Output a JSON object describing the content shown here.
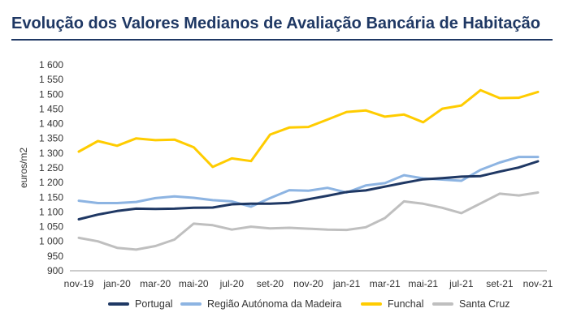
{
  "title": "Evolução dos Valores Medianos de Avaliação Bancária de Habitação",
  "chart_data": {
    "type": "line",
    "title": "Evolução dos Valores Medianos de Avaliação Bancária de Habitação",
    "xlabel": "",
    "ylabel": "euros/m2",
    "ylim": [
      900,
      1600
    ],
    "yticks": [
      900,
      950,
      1000,
      1050,
      1100,
      1150,
      1200,
      1250,
      1300,
      1350,
      1400,
      1450,
      1500,
      1550,
      1600
    ],
    "ytick_labels": [
      "900",
      "950",
      "1 000",
      "1 050",
      "1 100",
      "1 150",
      "1 200",
      "1 250",
      "1 300",
      "1 350",
      "1 400",
      "1 450",
      "1 500",
      "1 550",
      "1 600"
    ],
    "x": [
      "nov-19",
      "dez-19",
      "jan-20",
      "fev-20",
      "mar-20",
      "abr-20",
      "mai-20",
      "jun-20",
      "jul-20",
      "ago-20",
      "set-20",
      "out-20",
      "nov-20",
      "dez-20",
      "jan-21",
      "fev-21",
      "mar-21",
      "abr-21",
      "mai-21",
      "jun-21",
      "jul-21",
      "ago-21",
      "set-21",
      "out-21",
      "nov-21"
    ],
    "xtick_labels": [
      "nov-19",
      "jan-20",
      "mar-20",
      "mai-20",
      "jul-20",
      "set-20",
      "nov-20",
      "jan-21",
      "mar-21",
      "mai-21",
      "jul-21",
      "set-21",
      "nov-21"
    ],
    "grid": false,
    "legend_position": "bottom",
    "series": [
      {
        "name": "Portugal",
        "color": "#1f3864",
        "values": [
          1075,
          1091,
          1103,
          1111,
          1110,
          1111,
          1114,
          1115,
          1126,
          1128,
          1128,
          1131,
          1143,
          1155,
          1168,
          1173,
          1186,
          1199,
          1211,
          1215,
          1220,
          1222,
          1237,
          1251,
          1272
        ]
      },
      {
        "name": "Região Autónoma da Madeira",
        "color": "#8db4e2",
        "values": [
          1138,
          1130,
          1130,
          1134,
          1147,
          1153,
          1148,
          1140,
          1136,
          1118,
          1147,
          1174,
          1172,
          1182,
          1166,
          1190,
          1198,
          1225,
          1214,
          1210,
          1206,
          1243,
          1268,
          1287,
          1287
        ]
      },
      {
        "name": "Funchal",
        "color": "#ffcc00",
        "values": [
          1305,
          1341,
          1325,
          1350,
          1344,
          1346,
          1320,
          1253,
          1282,
          1273,
          1363,
          1387,
          1389,
          1414,
          1440,
          1445,
          1424,
          1431,
          1405,
          1451,
          1462,
          1514,
          1487,
          1488,
          1508
        ]
      },
      {
        "name": "Santa Cruz",
        "color": "#bfbfbf",
        "values": [
          1012,
          1000,
          978,
          972,
          984,
          1006,
          1060,
          1055,
          1040,
          1050,
          1044,
          1046,
          1043,
          1040,
          1039,
          1048,
          1079,
          1136,
          1128,
          1114,
          1096,
          1129,
          1162,
          1156,
          1166
        ]
      }
    ]
  }
}
